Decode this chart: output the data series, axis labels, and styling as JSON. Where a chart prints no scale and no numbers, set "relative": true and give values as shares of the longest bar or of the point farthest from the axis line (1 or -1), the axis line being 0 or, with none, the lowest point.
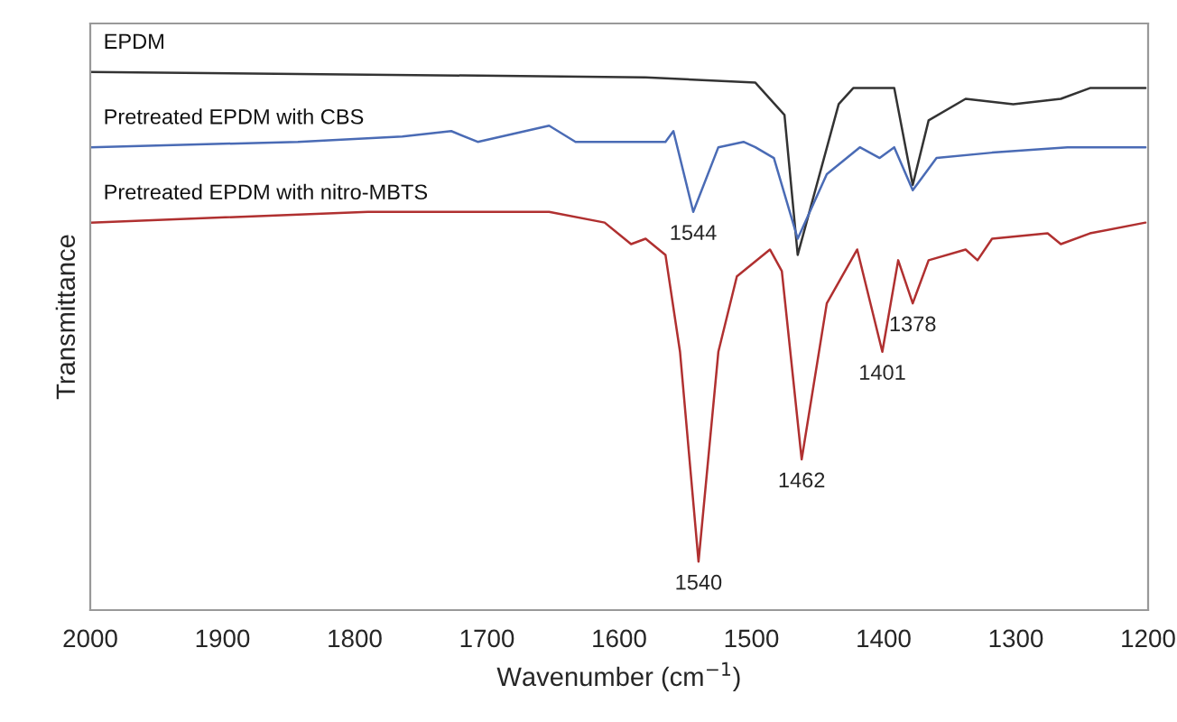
{
  "chart_data": {
    "type": "line",
    "relative": true,
    "xlabel": "Wavenumber (cm$^{−1}$)",
    "ylabel": "Transmittance",
    "xlim": [
      2000,
      1200
    ],
    "xticks": [
      2000,
      1900,
      1800,
      1700,
      1600,
      1500,
      1400,
      1300,
      1200
    ],
    "tick_labels": "x",
    "grid": false,
    "legend": false,
    "marker": "none",
    "line_style": "solid",
    "series": [
      {
        "name": "EPDM",
        "color": "#333333",
        "x": [
          2000,
          1580,
          1497,
          1475,
          1465,
          1434,
          1423,
          1392,
          1378,
          1366,
          1338,
          1302,
          1266,
          1244,
          1202
        ],
        "values": [
          1.0,
          0.99,
          0.98,
          0.92,
          0.66,
          0.94,
          0.97,
          0.97,
          0.79,
          0.91,
          0.95,
          0.94,
          0.95,
          0.97,
          0.97
        ]
      },
      {
        "name": "Pretreated EPDM with CBS",
        "color": "#4a6bb5",
        "x": [
          2000,
          1843,
          1764,
          1727,
          1707,
          1653,
          1633,
          1565,
          1559,
          1544,
          1525,
          1506,
          1497,
          1483,
          1465,
          1443,
          1418,
          1403,
          1392,
          1378,
          1360,
          1318,
          1261,
          1202
        ],
        "values": [
          0.86,
          0.87,
          0.88,
          0.89,
          0.87,
          0.9,
          0.87,
          0.87,
          0.89,
          0.74,
          0.86,
          0.87,
          0.86,
          0.84,
          0.69,
          0.81,
          0.86,
          0.84,
          0.86,
          0.78,
          0.84,
          0.85,
          0.86,
          0.86
        ]
      },
      {
        "name": "Pretreated EPDM with nitro-MBTS",
        "color": "#b03030",
        "x": [
          2000,
          1790,
          1701,
          1653,
          1611,
          1591,
          1580,
          1565,
          1554,
          1540,
          1525,
          1511,
          1486,
          1477,
          1462,
          1443,
          1420,
          1401,
          1389,
          1378,
          1366,
          1338,
          1329,
          1318,
          1276,
          1266,
          1244,
          1202
        ],
        "values": [
          0.72,
          0.74,
          0.74,
          0.74,
          0.72,
          0.68,
          0.69,
          0.66,
          0.48,
          0.09,
          0.48,
          0.62,
          0.67,
          0.63,
          0.28,
          0.57,
          0.67,
          0.48,
          0.65,
          0.57,
          0.65,
          0.67,
          0.65,
          0.69,
          0.7,
          0.68,
          0.7,
          0.72
        ]
      }
    ],
    "annotations": [
      {
        "text": "1544",
        "x": 1544,
        "y": 0.74
      },
      {
        "text": "1540",
        "x": 1540,
        "y": 0.09
      },
      {
        "text": "1462",
        "x": 1462,
        "y": 0.28
      },
      {
        "text": "1401",
        "x": 1401,
        "y": 0.48
      },
      {
        "text": "1378",
        "x": 1378,
        "y": 0.57
      }
    ]
  }
}
